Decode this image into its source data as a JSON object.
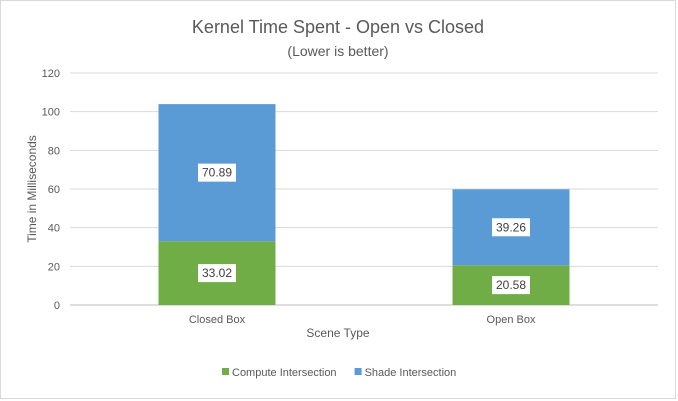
{
  "chart_data": {
    "type": "bar",
    "stacked": true,
    "title": "Kernel Time Spent - Open vs Closed",
    "subtitle": "(Lower is better)",
    "xlabel": "Scene Type",
    "ylabel": "Time in Milliseconds",
    "ylim": [
      0,
      120
    ],
    "yticks": [
      0,
      20,
      40,
      60,
      80,
      100,
      120
    ],
    "grid": true,
    "legend_position": "bottom",
    "categories": [
      "Closed Box",
      "Open Box"
    ],
    "series": [
      {
        "name": "Compute Intersection",
        "values": [
          33.02,
          20.58
        ],
        "labels": [
          "33.02",
          "20.58"
        ],
        "color": "#70ad47"
      },
      {
        "name": "Shade Intersection",
        "values": [
          70.89,
          39.26
        ],
        "labels": [
          "70.89",
          "39.26"
        ],
        "color": "#5b9bd5"
      }
    ]
  }
}
